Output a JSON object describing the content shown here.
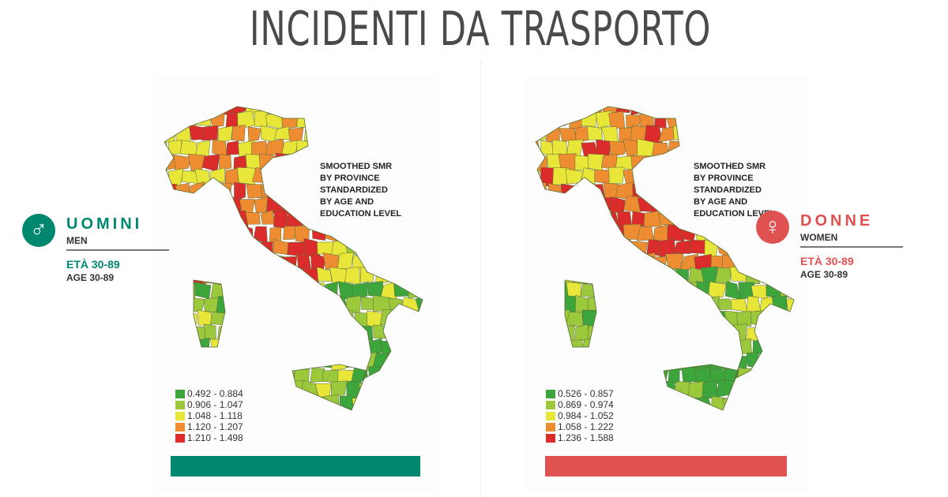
{
  "title": "INCIDENTI DA TRASPORTO",
  "colors": {
    "c1": "#3ca53c",
    "c2": "#9cc83c",
    "c3": "#e9e63a",
    "c4": "#ee8c32",
    "c5": "#dc2b2b",
    "men": "#00876f",
    "women": "#e05252"
  },
  "men": {
    "icon": "male-symbol-icon",
    "name": "UOMINI",
    "name_en": "MEN",
    "age_it": "ETÀ 30-89",
    "age_en": "AGE 30-89",
    "note": [
      "SMOOTHED SMR",
      "BY PROVINCE",
      "STANDARDIZED",
      "BY AGE AND",
      "EDUCATION LEVEL"
    ],
    "legend": [
      "0.492 - 0.884",
      "0.906 - 1.047",
      "1.048 - 1.118",
      "1.120 - 1.207",
      "1.210 - 1.498"
    ]
  },
  "women": {
    "icon": "female-symbol-icon",
    "name": "DONNE",
    "name_en": "WOMEN",
    "age_it": "ETÀ 30-89",
    "age_en": "AGE 30-89",
    "note": [
      "SMOOTHED SMR",
      "BY PROVINCE",
      "STANDARDIZED",
      "BY AGE AND",
      "EDUCATION LEVEL"
    ],
    "legend": [
      "0.526 - 0.857",
      "0.869 - 0.974",
      "0.984 - 1.052",
      "1.058 - 1.222",
      "1.236 - 1.588"
    ]
  }
}
